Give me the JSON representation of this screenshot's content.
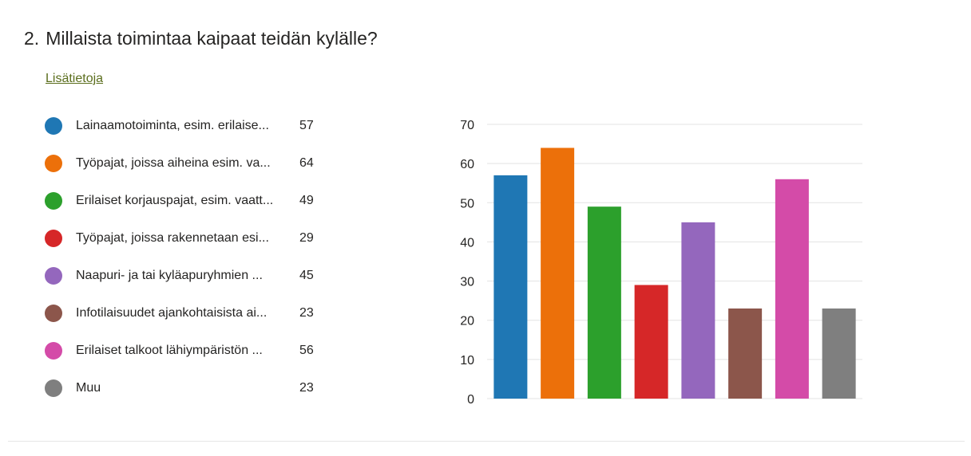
{
  "question": {
    "number": "2.",
    "title": "Millaista toimintaa kaipaat teidän kylälle?",
    "more_link": "Lisätietoja"
  },
  "legend": [
    {
      "label": "Lainaamotoiminta, esim. erilaise...",
      "count": "57",
      "color": "#1f77b4"
    },
    {
      "label": "Työpajat, joissa aiheina esim. va...",
      "count": "64",
      "color": "#ec700a"
    },
    {
      "label": "Erilaiset korjauspajat, esim. vaatt...",
      "count": "49",
      "color": "#2ca02c"
    },
    {
      "label": "Työpajat, joissa rakennetaan esi...",
      "count": "29",
      "color": "#d62728"
    },
    {
      "label": "Naapuri- ja tai kyläapuryhmien ...",
      "count": "45",
      "color": "#9467bd"
    },
    {
      "label": "Infotilaisuudet ajankohtaisista ai...",
      "count": "23",
      "color": "#8c564b"
    },
    {
      "label": "Erilaiset talkoot lähiympäristön ...",
      "count": "56",
      "color": "#d44ba8"
    },
    {
      "label": "Muu",
      "count": "23",
      "color": "#7f7f7f"
    }
  ],
  "chart_data": {
    "type": "bar",
    "categories": [
      "Lainaamotoiminta, esim. erilaise...",
      "Työpajat, joissa aiheina esim. va...",
      "Erilaiset korjauspajat, esim. vaatt...",
      "Työpajat, joissa rakennetaan esi...",
      "Naapuri- ja tai kyläapuryhmien ...",
      "Infotilaisuudet ajankohtaisista ai...",
      "Erilaiset talkoot lähiympäristön ...",
      "Muu"
    ],
    "values": [
      57,
      64,
      49,
      29,
      45,
      23,
      56,
      23
    ],
    "colors": [
      "#1f77b4",
      "#ec700a",
      "#2ca02c",
      "#d62728",
      "#9467bd",
      "#8c564b",
      "#d44ba8",
      "#7f7f7f"
    ],
    "ylim": [
      0,
      70
    ],
    "yticks": [
      0,
      10,
      20,
      30,
      40,
      50,
      60,
      70
    ],
    "grid": true,
    "gridColor": "#e3e3e3",
    "legend": "left"
  }
}
